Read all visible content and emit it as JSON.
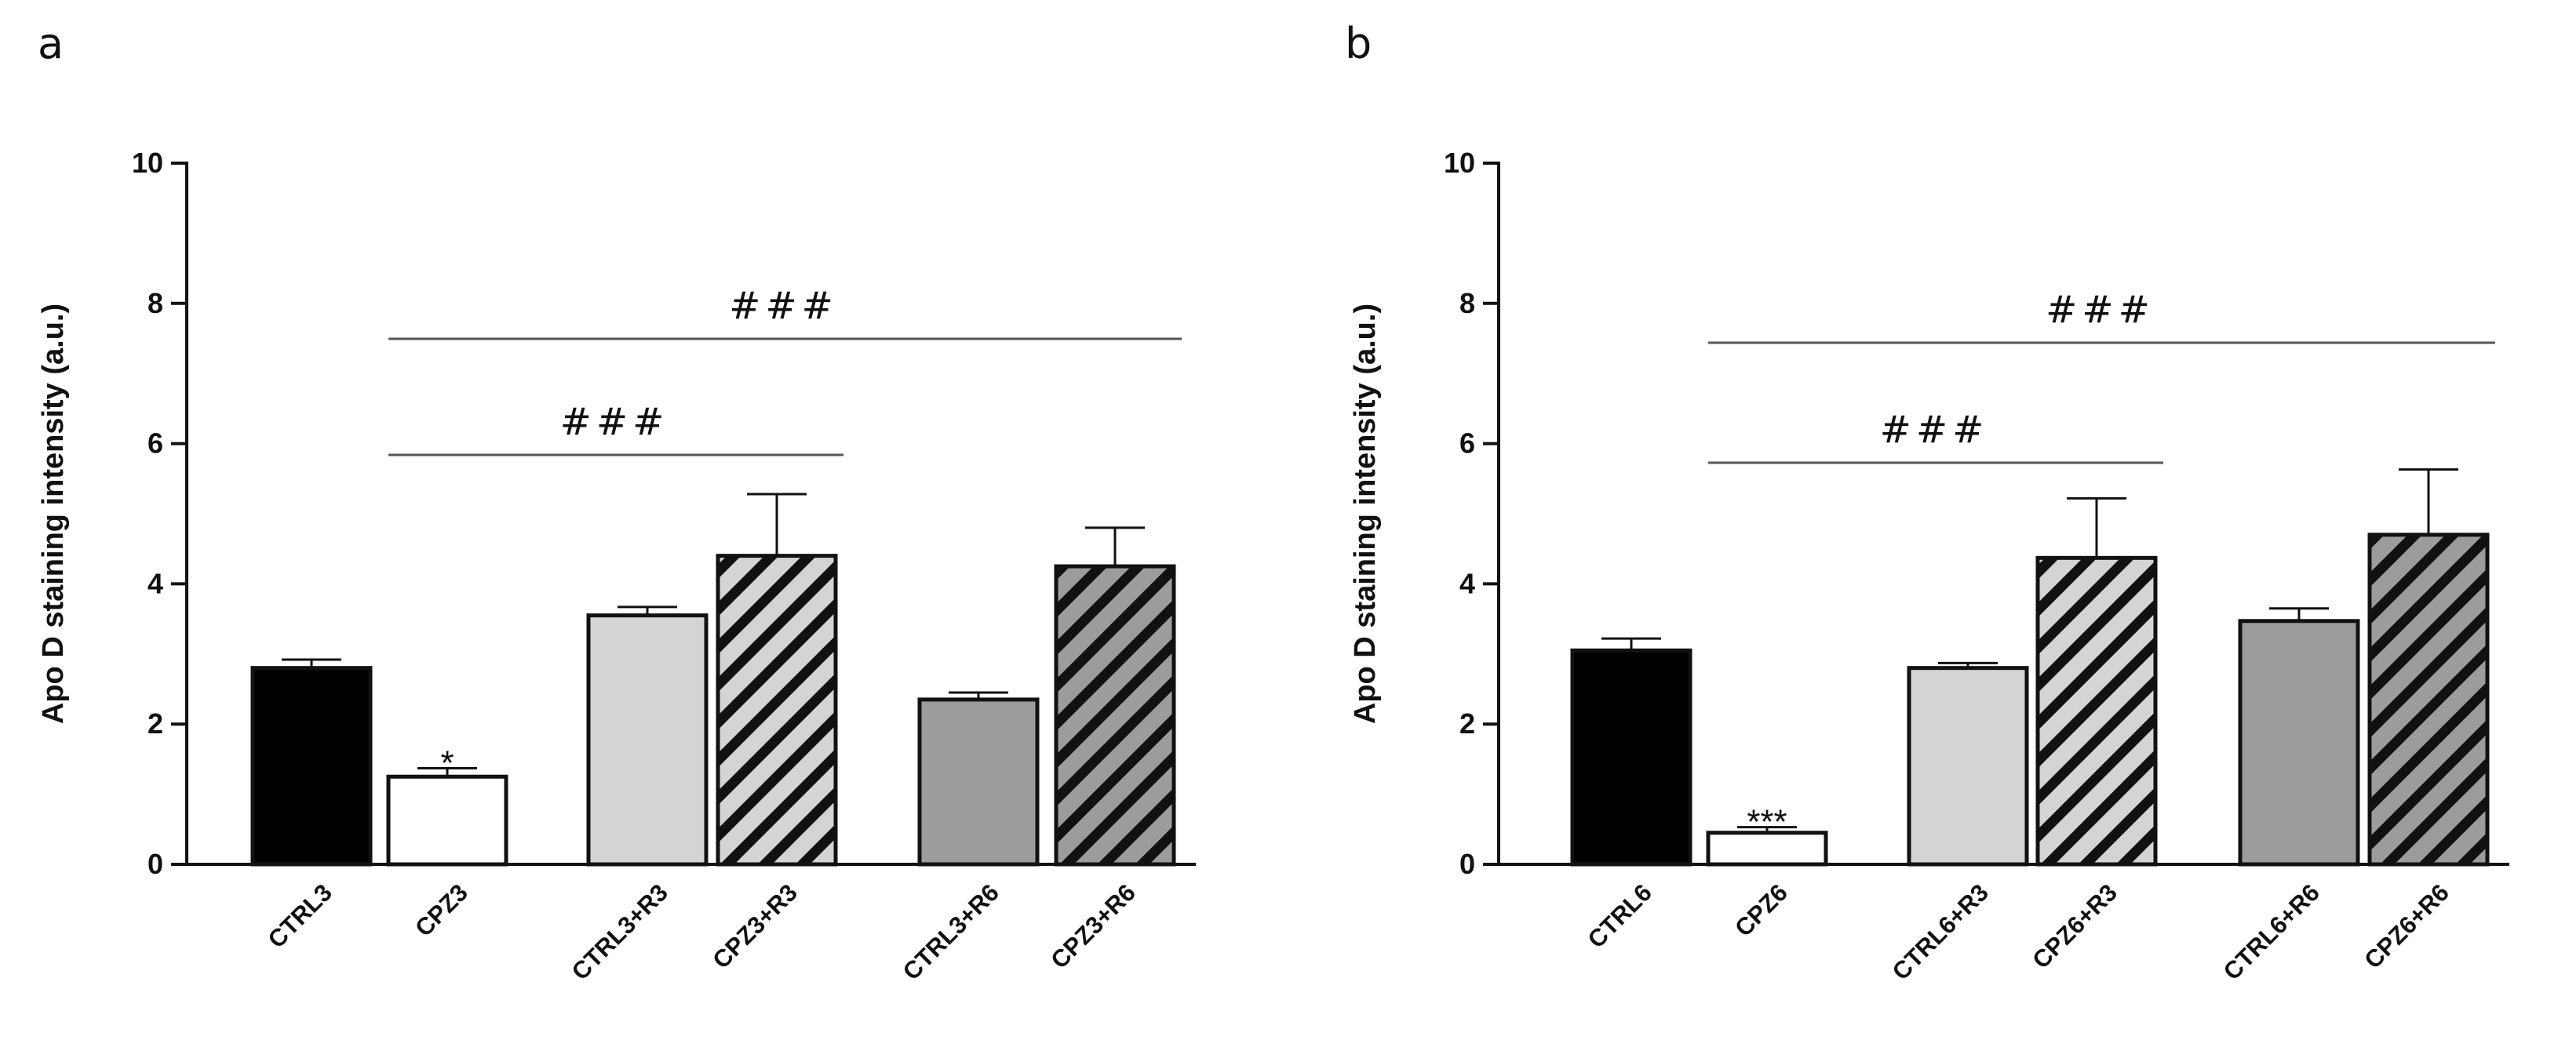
{
  "figure": {
    "panels": [
      "a",
      "b"
    ]
  },
  "colors": {
    "ctrl": "#000000",
    "cpz": "#ffffff",
    "light": "#d4d4d4",
    "mid": "#9c9c9c",
    "line": "#111111",
    "bracket": "#555555"
  },
  "chart_data": [
    {
      "panel": "a",
      "type": "bar",
      "title": "",
      "xlabel": "",
      "ylabel": "Apo D staining intensity (a.u.)",
      "ylim": [
        0,
        10
      ],
      "yticks": [
        "0",
        "2",
        "4",
        "6",
        "8",
        "10"
      ],
      "categories": [
        "CTRL3",
        "CPZ3",
        "CTRL3+R3",
        "CPZ3+R3",
        "CTRL3+R6",
        "CPZ3+R6"
      ],
      "values": [
        2.8,
        1.25,
        3.55,
        4.4,
        2.35,
        4.25
      ],
      "errors": [
        0.12,
        0.12,
        0.12,
        0.88,
        0.1,
        0.55
      ],
      "fills": [
        "ctrl",
        "cpz",
        "light",
        "light-hatch",
        "mid",
        "mid-hatch"
      ],
      "markers": [
        {
          "category": "CPZ3",
          "text": "*"
        }
      ],
      "brackets": [
        {
          "from": "CPZ3",
          "to": "CPZ3+R3",
          "label": "###"
        },
        {
          "from": "CPZ3",
          "to": "CPZ3+R6",
          "label": "###"
        }
      ]
    },
    {
      "panel": "b",
      "type": "bar",
      "title": "",
      "xlabel": "",
      "ylabel": "Apo D staining intensity (a.u.)",
      "ylim": [
        0,
        10
      ],
      "yticks": [
        "0",
        "2",
        "4",
        "6",
        "8",
        "10"
      ],
      "categories": [
        "CTRL6",
        "CPZ6",
        "CTRL6+R3",
        "CPZ6+R3",
        "CTRL6+R6",
        "CPZ6+R6"
      ],
      "values": [
        3.05,
        0.45,
        2.8,
        4.37,
        3.47,
        4.7
      ],
      "errors": [
        0.17,
        0.08,
        0.07,
        0.85,
        0.18,
        0.93
      ],
      "fills": [
        "ctrl",
        "cpz",
        "light",
        "light-hatch",
        "mid",
        "mid-hatch"
      ],
      "markers": [
        {
          "category": "CPZ6",
          "text": "***"
        }
      ],
      "brackets": [
        {
          "from": "CPZ6",
          "to": "CPZ6+R3",
          "label": "###"
        },
        {
          "from": "CPZ6",
          "to": "CPZ6+R6",
          "label": "###"
        }
      ]
    }
  ]
}
